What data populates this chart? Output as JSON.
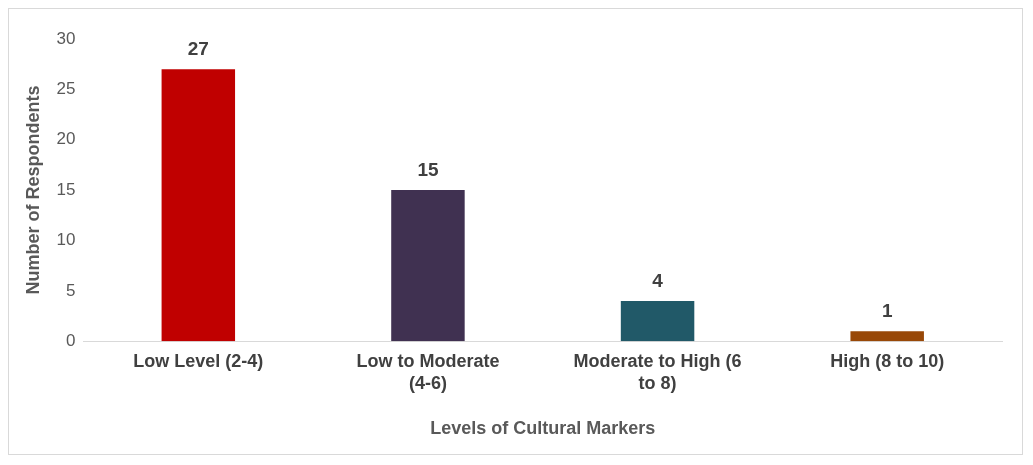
{
  "chart_data": {
    "type": "bar",
    "xlabel": "Levels of Cultural Markers",
    "ylabel": "Number of Respondents",
    "categories": [
      "Low Level (2-4)",
      "Low to Moderate (4-6)",
      "Moderate to High (6 to 8)",
      "High (8 to 10)"
    ],
    "values": [
      27,
      15,
      4,
      1
    ],
    "colors": [
      "#c00000",
      "#403151",
      "#215968",
      "#984807"
    ],
    "ylim": [
      0,
      30
    ],
    "yticks": [
      0,
      5,
      10,
      15,
      20,
      25,
      30
    ],
    "grid": false,
    "legend": false,
    "data_labels": true
  }
}
